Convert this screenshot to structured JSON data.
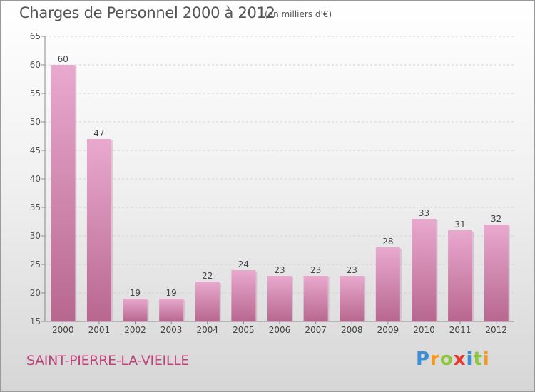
{
  "title": "Charges de Personnel 2000 à 2012",
  "subtitle": "(en milliers d'€)",
  "place": "SAINT-PIERRE-LA-VIEILLE",
  "logo": {
    "text": "Proxiti",
    "letters": [
      {
        "ch": "P",
        "color": "#3a8fd8"
      },
      {
        "ch": "r",
        "color": "#f29a1f"
      },
      {
        "ch": "o",
        "color": "#8cc63f"
      },
      {
        "ch": "x",
        "color": "#e8382f"
      },
      {
        "ch": "i",
        "color": "#3a8fd8"
      },
      {
        "ch": "t",
        "color": "#8cc63f"
      },
      {
        "ch": "i",
        "color": "#f29a1f"
      }
    ]
  },
  "colors": {
    "bar_top": "#e9a9cf",
    "bar_bottom": "#b8678f",
    "bar_shadow": "#c9a6b8",
    "place_text": "#c0427a"
  },
  "chart_data": {
    "type": "bar",
    "categories": [
      "2000",
      "2001",
      "2002",
      "2003",
      "2004",
      "2005",
      "2006",
      "2007",
      "2008",
      "2009",
      "2010",
      "2011",
      "2012"
    ],
    "values": [
      60,
      47,
      19,
      19,
      22,
      24,
      23,
      23,
      23,
      28,
      33,
      31,
      32
    ],
    "ylim": [
      15,
      65
    ],
    "yticks": [
      15,
      20,
      25,
      30,
      35,
      40,
      45,
      50,
      55,
      60,
      65
    ],
    "grid": true,
    "data_labels": true,
    "xlabel": "",
    "ylabel": ""
  }
}
